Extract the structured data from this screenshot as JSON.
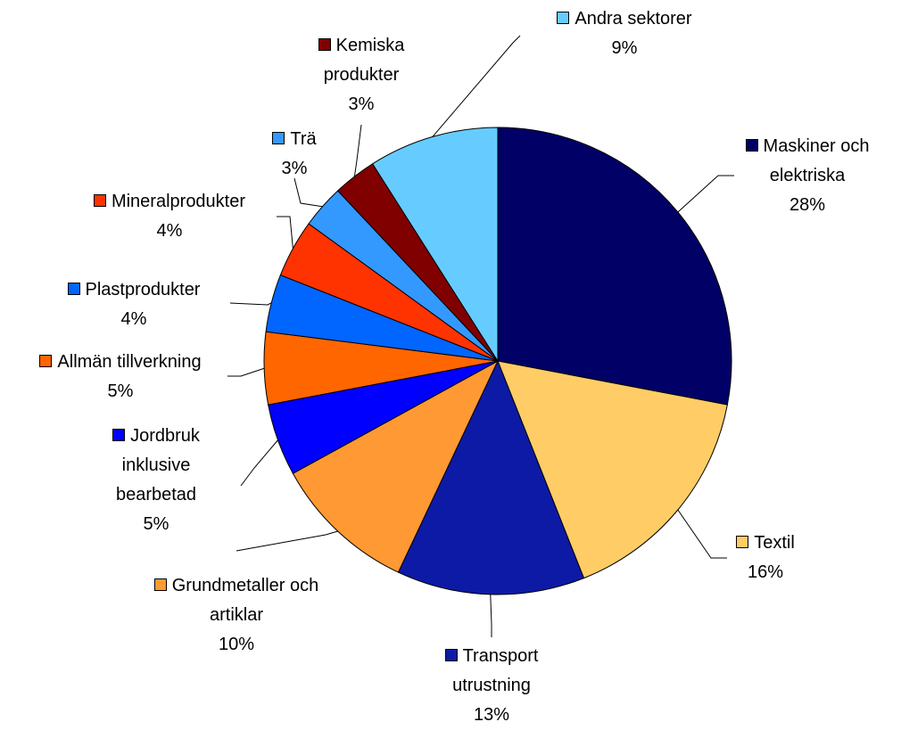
{
  "chart_data": {
    "type": "pie",
    "categories": [
      "Maskiner och elektriska",
      "Textil",
      "Transport utrustning",
      "Grundmetaller och artiklar",
      "Jordbruk inklusive bearbetad",
      "Allmän tillverkning",
      "Plastprodukter",
      "Mineralprodukter",
      "Trä",
      "Kemiska produkter",
      "Andra sektorer"
    ],
    "values": [
      28,
      16,
      13,
      10,
      5,
      5,
      4,
      4,
      3,
      3,
      9
    ],
    "value_labels": [
      "28%",
      "16%",
      "13%",
      "10%",
      "5%",
      "5%",
      "4%",
      "4%",
      "3%",
      "3%",
      "9%"
    ],
    "colors": [
      "#000066",
      "#ffcc66",
      "#0d1aa6",
      "#ff9933",
      "#0000ff",
      "#ff6600",
      "#0066ff",
      "#ff3300",
      "#3399ff",
      "#800000",
      "#66ccff"
    ]
  }
}
